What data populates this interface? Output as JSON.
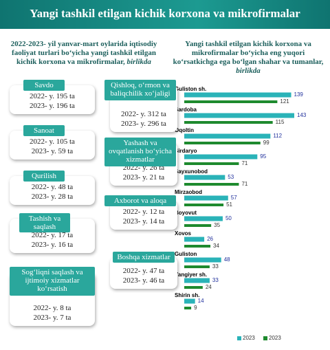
{
  "header": {
    "title": "Yangi tashkil etilgan kichik korxona va mikrofirmalar"
  },
  "left_panel": {
    "title": "2022-2023- yil yanvar-mart oylarida iqtisodiy faoliyat turlari bo‘yicha yangi tashkil etilgan kichik korxona va mikrofirmalar,",
    "title_unit": "birlikda",
    "cards": [
      {
        "label": "Savdo",
        "lines": [
          "2022- y. 195 ta",
          "2023- y. 196 ta"
        ]
      },
      {
        "label": "Qishloq, o‘rmon va baliqchilik xo‘jaligi",
        "lines": [
          "2022- y. 312 ta",
          "2023- y. 296 ta"
        ]
      },
      {
        "label": "Sanoat",
        "lines": [
          "2022- y. 105 ta",
          "2023- y. 59 ta"
        ]
      },
      {
        "label": "Yashash va ovqatlanish bo‘yicha xizmatlar",
        "lines": [
          "2022- y. 26 ta",
          "2023- y. 21 ta"
        ]
      },
      {
        "label": "Qurilish",
        "lines": [
          "2022- y. 48 ta",
          "2023- y. 28 ta"
        ]
      },
      {
        "label": "Axborot va aloqa",
        "lines": [
          "2022- y. 12 ta",
          "2023- y. 14 ta"
        ]
      },
      {
        "label": "Tashish va saqlash",
        "lines": [
          "2022- y. 17 ta",
          "2023- y. 16 ta"
        ]
      },
      {
        "label": "Boshqa xizmatlar",
        "lines": [
          "2022- y. 47 ta",
          "2023- y. 46 ta"
        ]
      },
      {
        "label": "Sog‘liqni saqlash va ijtimoiy xizmatlar ko‘rsatish",
        "lines": [
          "2022- y. 8 ta",
          "2023- y. 7 ta"
        ]
      }
    ]
  },
  "chart_data": {
    "type": "bar",
    "orientation": "horizontal",
    "title": "Yangi tashkil etilgan kichik korxona va mikrofirmalar bo‘yicha eng yuqori ko‘rsatkichga ega bo‘lgan shahar va tumanlar,",
    "title_unit": "birlikda",
    "categories": [
      "Guliston sh.",
      "Sardoba",
      "Oqoltin",
      "Sirdaryo",
      "Sayxunobod",
      "Mirzaobod",
      "Boyovut",
      "Xovos",
      "Guliston",
      "Yangiyer sh.",
      "Shirin sh."
    ],
    "series": [
      {
        "name": "2023",
        "color": "#2ab3b8",
        "label_color": "#1f2f9c",
        "values": [
          139,
          143,
          112,
          95,
          53,
          57,
          50,
          26,
          48,
          33,
          14
        ]
      },
      {
        "name": "2023",
        "color": "#1e8a2e",
        "label_color": "#333333",
        "values": [
          121,
          115,
          99,
          71,
          71,
          51,
          35,
          34,
          33,
          24,
          9
        ]
      }
    ],
    "legend": "bottom"
  }
}
